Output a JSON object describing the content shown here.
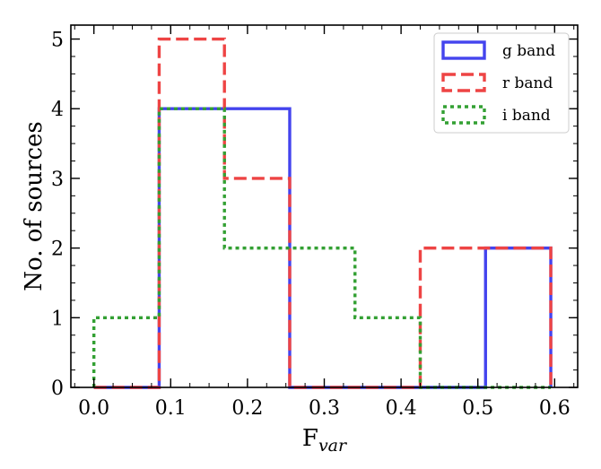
{
  "chart_data": {
    "type": "histogram",
    "xlabel_main": "F",
    "xlabel_sub": "var",
    "ylabel": "No. of sources",
    "xlim": [
      -0.03,
      0.63
    ],
    "ylim": [
      0,
      5.2
    ],
    "xticks": [
      0.0,
      0.1,
      0.2,
      0.3,
      0.4,
      0.5,
      0.6
    ],
    "xtick_labels": [
      "0.0",
      "0.1",
      "0.2",
      "0.3",
      "0.4",
      "0.5",
      "0.6"
    ],
    "yticks": [
      0,
      1,
      2,
      3,
      4,
      5
    ],
    "ytick_labels": [
      "0",
      "1",
      "2",
      "3",
      "4",
      "5"
    ],
    "grid": false,
    "legend_position": "top-right",
    "bin_edges": [
      0.0,
      0.085,
      0.17,
      0.255,
      0.34,
      0.425,
      0.51,
      0.595
    ],
    "series": [
      {
        "name": "g band",
        "color": "#4444ee",
        "style": "solid",
        "counts": [
          0,
          4,
          4,
          0,
          0,
          0,
          2
        ]
      },
      {
        "name": "r band",
        "color": "#ee4444",
        "style": "dashed",
        "counts": [
          0,
          5,
          3,
          0,
          0,
          2,
          2
        ]
      },
      {
        "name": "i band",
        "color": "#33a033",
        "style": "dotted",
        "counts": [
          1,
          4,
          2,
          2,
          1,
          0,
          0
        ]
      }
    ]
  }
}
